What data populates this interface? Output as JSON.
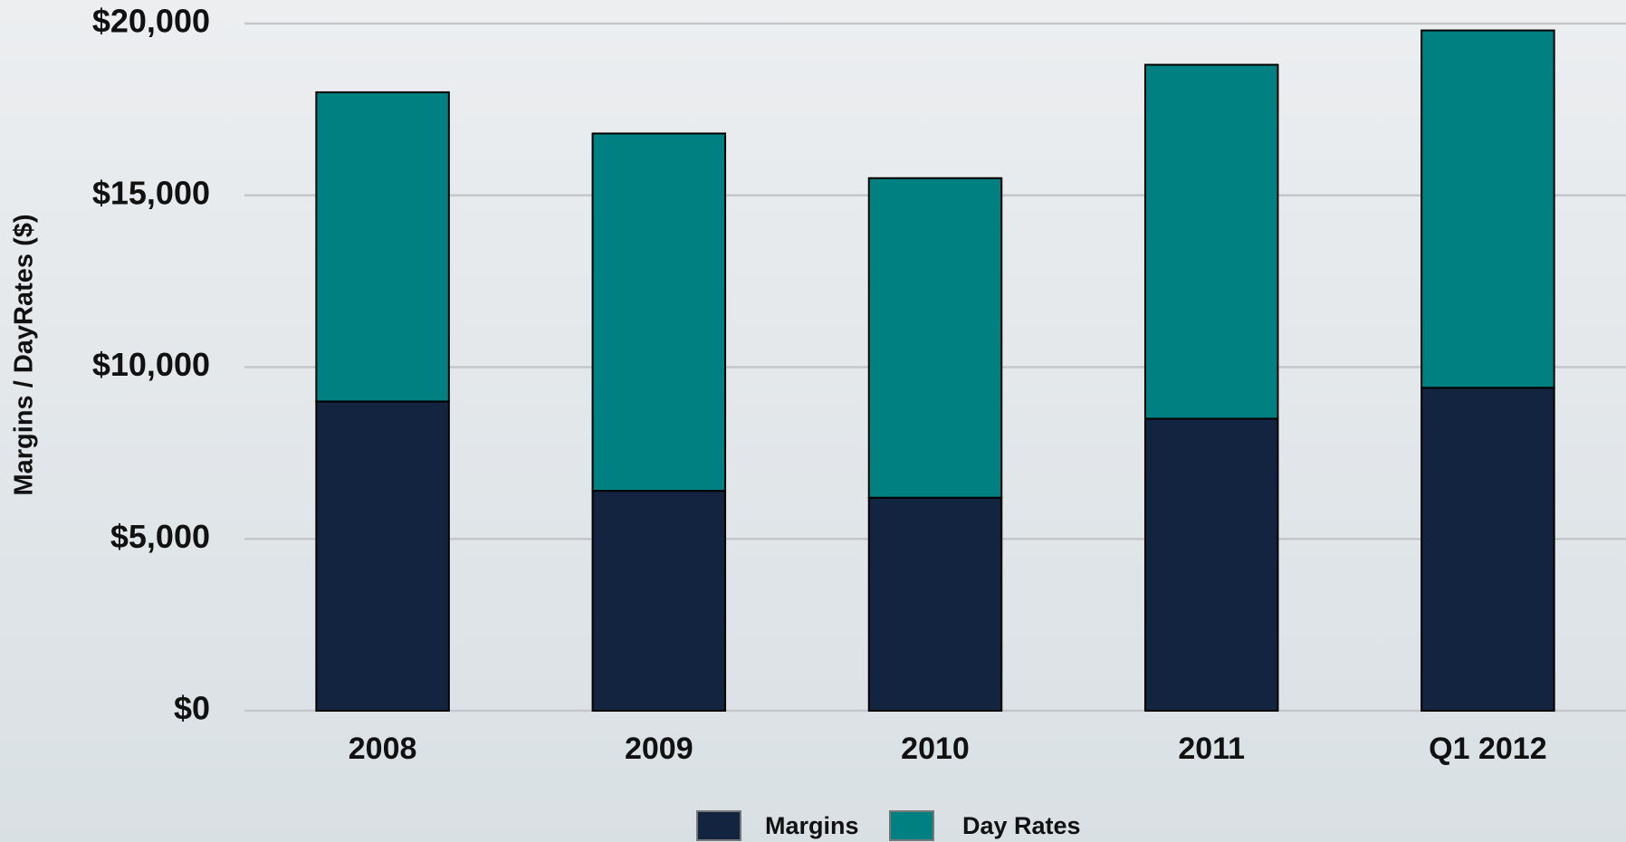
{
  "chart_data": {
    "type": "stacked_bar",
    "y_label": "Margins / DayRates ($)",
    "categories": [
      "2008",
      "2009",
      "2010",
      "2011",
      "Q1 2012"
    ],
    "series": [
      {
        "name": "Margins",
        "color": "#12243f",
        "values": [
          9000,
          6400,
          6200,
          8500,
          9400
        ]
      },
      {
        "name": "Day Rates",
        "color": "#008080",
        "values": [
          9000,
          10400,
          9300,
          10300,
          10400
        ]
      }
    ],
    "ylim": [
      0,
      20000
    ],
    "yticks": [
      {
        "value": 0,
        "label": "$0"
      },
      {
        "value": 5000,
        "label": "$5,000"
      },
      {
        "value": 10000,
        "label": "$10,000"
      },
      {
        "value": 15000,
        "label": "$15,000"
      },
      {
        "value": 20000,
        "label": "$20,000"
      }
    ],
    "grid": true
  }
}
